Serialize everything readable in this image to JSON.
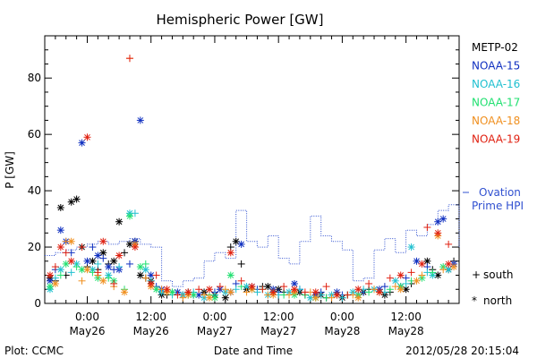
{
  "chart_data": {
    "type": "scatter",
    "title": "Hemispheric Power [GW]",
    "ylabel": "P [GW]",
    "xlabel": "Date and Time",
    "ylim": [
      0,
      95
    ],
    "xlim_hours": [
      -8,
      70
    ],
    "y_ticks": [
      "0",
      "20",
      "40",
      "60",
      "80"
    ],
    "x_ticks": [
      {
        "h": 0,
        "time": "0:00",
        "date": "May26"
      },
      {
        "h": 12,
        "time": "12:00",
        "date": "May26"
      },
      {
        "h": 24,
        "time": "0:00",
        "date": "May27"
      },
      {
        "h": 36,
        "time": "12:00",
        "date": "May27"
      },
      {
        "h": 48,
        "time": "0:00",
        "date": "May28"
      },
      {
        "h": 60,
        "time": "12:00",
        "date": "May28"
      }
    ],
    "legend": [
      {
        "name": "METP-02",
        "color": "#000000"
      },
      {
        "name": "NOAA-15",
        "color": "#1030c0"
      },
      {
        "name": "NOAA-16",
        "color": "#20c0d0"
      },
      {
        "name": "NOAA-17",
        "color": "#20e070"
      },
      {
        "name": "NOAA-18",
        "color": "#f09020"
      },
      {
        "name": "NOAA-19",
        "color": "#e02010"
      }
    ],
    "marker_key": [
      {
        "symbol": "+",
        "label": "south"
      },
      {
        "symbol": "*",
        "label": "north"
      }
    ],
    "ovation": {
      "label_line1": "Ovation",
      "label_line2": "Prime HPI",
      "color": "#3050d0",
      "hours": [
        -8,
        -6,
        -4,
        -2,
        0,
        2,
        4,
        6,
        8,
        10,
        12,
        14,
        16,
        18,
        20,
        22,
        24,
        26,
        28,
        30,
        32,
        34,
        36,
        38,
        40,
        42,
        44,
        46,
        48,
        50,
        52,
        54,
        56,
        58,
        60,
        62,
        64,
        66,
        68,
        70
      ],
      "values": [
        17,
        18,
        19,
        20,
        21,
        22,
        21,
        22,
        23,
        21,
        20,
        8,
        6,
        8,
        9,
        15,
        18,
        16,
        33,
        22,
        20,
        24,
        16,
        14,
        22,
        31,
        24,
        22,
        19,
        8,
        9,
        19,
        23,
        18,
        26,
        24,
        28,
        33,
        35,
        20
      ]
    },
    "series": [
      {
        "name": "METP-02",
        "marker": "*",
        "points": [
          [
            -7,
            9
          ],
          [
            -5,
            34
          ],
          [
            -3,
            36
          ],
          [
            -2,
            37
          ],
          [
            -1,
            20
          ],
          [
            1,
            15
          ],
          [
            3,
            18
          ],
          [
            5,
            15
          ],
          [
            6,
            29
          ],
          [
            8,
            21
          ],
          [
            9,
            22
          ],
          [
            10,
            10
          ],
          [
            12,
            8
          ],
          [
            14,
            3
          ],
          [
            18,
            3
          ],
          [
            22,
            4
          ],
          [
            24,
            3
          ],
          [
            26,
            2
          ],
          [
            28,
            22
          ],
          [
            30,
            5
          ],
          [
            34,
            6
          ],
          [
            36,
            5
          ],
          [
            40,
            4
          ],
          [
            44,
            3
          ],
          [
            48,
            2
          ],
          [
            52,
            4
          ],
          [
            56,
            3
          ],
          [
            60,
            5
          ],
          [
            64,
            15
          ],
          [
            66,
            10
          ],
          [
            68,
            12
          ]
        ]
      },
      {
        "name": "METP-02",
        "marker": "+",
        "points": [
          [
            -6,
            8
          ],
          [
            -4,
            10
          ],
          [
            0,
            13
          ],
          [
            2,
            12
          ],
          [
            4,
            14
          ],
          [
            7,
            18
          ],
          [
            11,
            9
          ],
          [
            15,
            3
          ],
          [
            19,
            4
          ],
          [
            23,
            3
          ],
          [
            27,
            20
          ],
          [
            29,
            14
          ],
          [
            33,
            6
          ],
          [
            37,
            4
          ],
          [
            41,
            3
          ],
          [
            45,
            2
          ],
          [
            49,
            3
          ],
          [
            53,
            5
          ],
          [
            57,
            4
          ],
          [
            61,
            7
          ],
          [
            65,
            12
          ],
          [
            69,
            15
          ]
        ]
      },
      {
        "name": "NOAA-15",
        "marker": "*",
        "points": [
          [
            -7,
            8
          ],
          [
            -5,
            26
          ],
          [
            -4,
            22
          ],
          [
            -1,
            57
          ],
          [
            0,
            15
          ],
          [
            2,
            17
          ],
          [
            4,
            13
          ],
          [
            6,
            12
          ],
          [
            9,
            22
          ],
          [
            10,
            65
          ],
          [
            12,
            10
          ],
          [
            14,
            5
          ],
          [
            17,
            4
          ],
          [
            21,
            3
          ],
          [
            25,
            5
          ],
          [
            27,
            4
          ],
          [
            29,
            21
          ],
          [
            31,
            6
          ],
          [
            35,
            5
          ],
          [
            39,
            7
          ],
          [
            43,
            3
          ],
          [
            47,
            4
          ],
          [
            51,
            3
          ],
          [
            55,
            5
          ],
          [
            59,
            6
          ],
          [
            62,
            15
          ],
          [
            66,
            29
          ],
          [
            67,
            30
          ],
          [
            69,
            14
          ]
        ]
      },
      {
        "name": "NOAA-15",
        "marker": "+",
        "points": [
          [
            -6,
            12
          ],
          [
            -3,
            18
          ],
          [
            1,
            20
          ],
          [
            3,
            16
          ],
          [
            5,
            12
          ],
          [
            8,
            14
          ],
          [
            13,
            6
          ],
          [
            16,
            4
          ],
          [
            20,
            3
          ],
          [
            24,
            4
          ],
          [
            28,
            7
          ],
          [
            32,
            5
          ],
          [
            36,
            4
          ],
          [
            40,
            5
          ],
          [
            44,
            4
          ],
          [
            48,
            3
          ],
          [
            52,
            4
          ],
          [
            56,
            6
          ],
          [
            60,
            9
          ],
          [
            64,
            13
          ]
        ]
      },
      {
        "name": "NOAA-16",
        "marker": "*",
        "points": [
          [
            -7,
            5
          ],
          [
            -5,
            12
          ],
          [
            -2,
            14
          ],
          [
            1,
            12
          ],
          [
            4,
            10
          ],
          [
            8,
            32
          ],
          [
            11,
            12
          ],
          [
            14,
            4
          ],
          [
            18,
            3
          ],
          [
            22,
            2
          ],
          [
            26,
            4
          ],
          [
            30,
            6
          ],
          [
            34,
            3
          ],
          [
            38,
            4
          ],
          [
            42,
            2
          ],
          [
            46,
            3
          ],
          [
            50,
            4
          ],
          [
            54,
            5
          ],
          [
            58,
            8
          ],
          [
            61,
            20
          ],
          [
            65,
            10
          ],
          [
            68,
            12
          ]
        ]
      },
      {
        "name": "NOAA-16",
        "marker": "+",
        "points": [
          [
            -6,
            9
          ],
          [
            -3,
            11
          ],
          [
            2,
            14
          ],
          [
            6,
            13
          ],
          [
            9,
            32
          ],
          [
            12,
            8
          ],
          [
            16,
            3
          ],
          [
            20,
            4
          ],
          [
            24,
            3
          ],
          [
            28,
            5
          ],
          [
            32,
            4
          ],
          [
            36,
            3
          ],
          [
            40,
            5
          ],
          [
            44,
            3
          ],
          [
            48,
            2
          ],
          [
            52,
            5
          ],
          [
            56,
            4
          ],
          [
            60,
            7
          ],
          [
            64,
            11
          ]
        ]
      },
      {
        "name": "NOAA-17",
        "marker": "*",
        "points": [
          [
            -7,
            6
          ],
          [
            -4,
            14
          ],
          [
            -1,
            12
          ],
          [
            2,
            9
          ],
          [
            5,
            8
          ],
          [
            8,
            31
          ],
          [
            10,
            13
          ],
          [
            13,
            5
          ],
          [
            16,
            4
          ],
          [
            20,
            3
          ],
          [
            24,
            2
          ],
          [
            27,
            10
          ],
          [
            31,
            5
          ],
          [
            35,
            4
          ],
          [
            39,
            3
          ],
          [
            43,
            2
          ],
          [
            47,
            3
          ],
          [
            51,
            3
          ],
          [
            55,
            4
          ],
          [
            59,
            6
          ],
          [
            63,
            9
          ],
          [
            67,
            13
          ]
        ]
      },
      {
        "name": "NOAA-17",
        "marker": "+",
        "points": [
          [
            -5,
            10
          ],
          [
            -2,
            13
          ],
          [
            1,
            11
          ],
          [
            4,
            9
          ],
          [
            7,
            5
          ],
          [
            11,
            14
          ],
          [
            15,
            4
          ],
          [
            19,
            3
          ],
          [
            23,
            3
          ],
          [
            29,
            6
          ],
          [
            33,
            5
          ],
          [
            37,
            3
          ],
          [
            41,
            3
          ],
          [
            45,
            2
          ],
          [
            49,
            3
          ],
          [
            53,
            4
          ],
          [
            57,
            5
          ],
          [
            61,
            8
          ],
          [
            65,
            11
          ]
        ]
      },
      {
        "name": "NOAA-18",
        "marker": "*",
        "points": [
          [
            -6,
            7
          ],
          [
            -3,
            22
          ],
          [
            0,
            12
          ],
          [
            3,
            8
          ],
          [
            7,
            4
          ],
          [
            9,
            21
          ],
          [
            12,
            6
          ],
          [
            15,
            4
          ],
          [
            19,
            3
          ],
          [
            23,
            2
          ],
          [
            27,
            4
          ],
          [
            31,
            5
          ],
          [
            35,
            3
          ],
          [
            39,
            4
          ],
          [
            43,
            2
          ],
          [
            47,
            3
          ],
          [
            51,
            2
          ],
          [
            55,
            4
          ],
          [
            59,
            5
          ],
          [
            62,
            8
          ],
          [
            66,
            24
          ],
          [
            69,
            13
          ]
        ]
      },
      {
        "name": "NOAA-18",
        "marker": "+",
        "points": [
          [
            -4,
            22
          ],
          [
            -1,
            8
          ],
          [
            2,
            10
          ],
          [
            5,
            6
          ],
          [
            8,
            87
          ],
          [
            11,
            9
          ],
          [
            14,
            5
          ],
          [
            18,
            2
          ],
          [
            22,
            3
          ],
          [
            26,
            5
          ],
          [
            30,
            4
          ],
          [
            34,
            3
          ],
          [
            38,
            3
          ],
          [
            42,
            4
          ],
          [
            46,
            2
          ],
          [
            50,
            3
          ],
          [
            54,
            5
          ],
          [
            58,
            6
          ],
          [
            63,
            10
          ],
          [
            67,
            12
          ]
        ]
      },
      {
        "name": "NOAA-19",
        "marker": "*",
        "points": [
          [
            -7,
            10
          ],
          [
            -5,
            20
          ],
          [
            -3,
            15
          ],
          [
            0,
            59
          ],
          [
            3,
            22
          ],
          [
            6,
            17
          ],
          [
            9,
            20
          ],
          [
            12,
            7
          ],
          [
            15,
            5
          ],
          [
            19,
            4
          ],
          [
            23,
            5
          ],
          [
            27,
            18
          ],
          [
            31,
            6
          ],
          [
            35,
            4
          ],
          [
            39,
            5
          ],
          [
            43,
            4
          ],
          [
            47,
            3
          ],
          [
            51,
            5
          ],
          [
            55,
            4
          ],
          [
            59,
            10
          ],
          [
            63,
            14
          ],
          [
            66,
            25
          ],
          [
            68,
            14
          ]
        ]
      },
      {
        "name": "NOAA-19",
        "marker": "+",
        "points": [
          [
            -6,
            13
          ],
          [
            -4,
            18
          ],
          [
            -1,
            20
          ],
          [
            2,
            11
          ],
          [
            5,
            7
          ],
          [
            8,
            87
          ],
          [
            13,
            10
          ],
          [
            17,
            3
          ],
          [
            21,
            5
          ],
          [
            25,
            6
          ],
          [
            29,
            8
          ],
          [
            33,
            5
          ],
          [
            37,
            6
          ],
          [
            41,
            4
          ],
          [
            45,
            6
          ],
          [
            49,
            3
          ],
          [
            53,
            7
          ],
          [
            57,
            9
          ],
          [
            61,
            11
          ],
          [
            64,
            27
          ],
          [
            68,
            21
          ]
        ]
      }
    ]
  },
  "footer": {
    "plot_credit": "Plot: CCMC",
    "timestamp": "2012/05/28 20:15:04"
  }
}
